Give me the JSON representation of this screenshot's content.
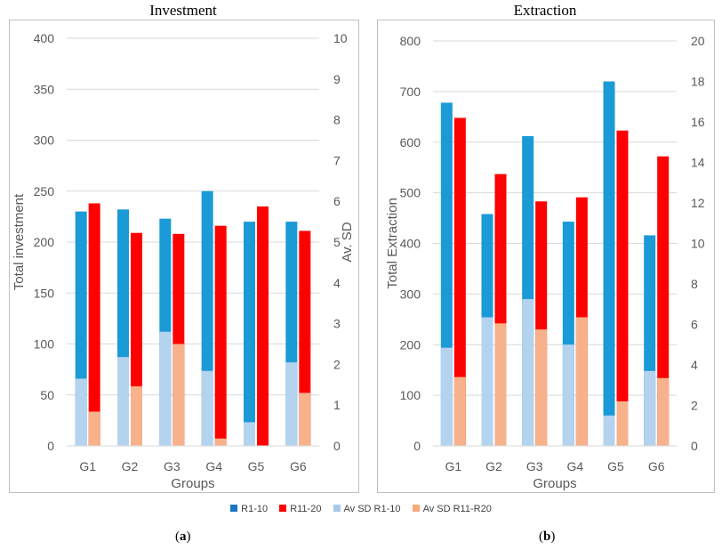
{
  "panel_a": {
    "title": "Investment",
    "caption_open": "(",
    "caption_letter": "a",
    "caption_close": ")"
  },
  "panel_b": {
    "title": "Extraction",
    "caption_open": "(",
    "caption_letter": "b",
    "caption_close": ")"
  },
  "colors": {
    "r1_10": "#1a9ad7",
    "r11_20": "#ff0000",
    "sd_r1_10": "#b4d3ee",
    "sd_r11_20": "#f7b28c",
    "grid": "#d9d9d9",
    "axis_text": "#595959"
  },
  "legend": [
    {
      "label": "R1-10",
      "color": "#1a75c1"
    },
    {
      "label": "R11-20",
      "color": "#ff0000"
    },
    {
      "label": "Av SD R1-10",
      "color": "#a9c9ea"
    },
    {
      "label": "Av SD R11-R20",
      "color": "#f7a97a"
    }
  ],
  "chart_data": [
    {
      "type": "bar",
      "title": "Investment",
      "xlabel": "Groups",
      "ylabel": "Total investment",
      "y2label": "Av. SD",
      "categories": [
        "G1",
        "G2",
        "G3",
        "G4",
        "G5",
        "G6"
      ],
      "ylim": [
        0,
        400
      ],
      "yticks": [
        0,
        50,
        100,
        150,
        200,
        250,
        300,
        350,
        400
      ],
      "y2lim": [
        0,
        10
      ],
      "y2ticks": [
        0,
        1,
        2,
        3,
        4,
        5,
        6,
        7,
        8,
        9,
        10
      ],
      "grid": true,
      "series": [
        {
          "name": "R1-10",
          "axis": "left",
          "values": [
            230,
            232,
            223,
            250,
            220,
            220
          ]
        },
        {
          "name": "R11-20",
          "axis": "left",
          "values": [
            238,
            209,
            208,
            216,
            235,
            211
          ]
        },
        {
          "name": "Av SD R1-10",
          "axis": "right",
          "values": [
            1.65,
            2.18,
            2.8,
            1.84,
            0.58,
            2.05
          ]
        },
        {
          "name": "Av SD R11-R20",
          "axis": "right",
          "values": [
            0.84,
            1.46,
            2.5,
            0.18,
            0,
            1.3
          ]
        }
      ]
    },
    {
      "type": "bar",
      "title": "Extraction",
      "xlabel": "Groups",
      "ylabel": "Total Extraction",
      "y2label": "Av. SD",
      "categories": [
        "G1",
        "G2",
        "G3",
        "G4",
        "G5",
        "G6"
      ],
      "ylim": [
        0,
        800
      ],
      "yticks": [
        0,
        100,
        200,
        300,
        400,
        500,
        600,
        700,
        800
      ],
      "y2lim": [
        0,
        20
      ],
      "y2ticks": [
        0,
        2,
        4,
        6,
        8,
        10,
        12,
        14,
        16,
        18,
        20
      ],
      "grid": true,
      "series": [
        {
          "name": "R1-10",
          "axis": "left",
          "values": [
            678,
            458,
            612,
            443,
            720,
            416
          ]
        },
        {
          "name": "R11-20",
          "axis": "left",
          "values": [
            648,
            537,
            483,
            491,
            623,
            572
          ]
        },
        {
          "name": "Av SD R1-10",
          "axis": "right",
          "values": [
            4.85,
            6.35,
            7.25,
            5.0,
            1.5,
            3.7
          ]
        },
        {
          "name": "Av SD R11-R20",
          "axis": "right",
          "values": [
            3.4,
            6.05,
            5.75,
            6.35,
            2.2,
            3.35
          ]
        }
      ]
    }
  ]
}
